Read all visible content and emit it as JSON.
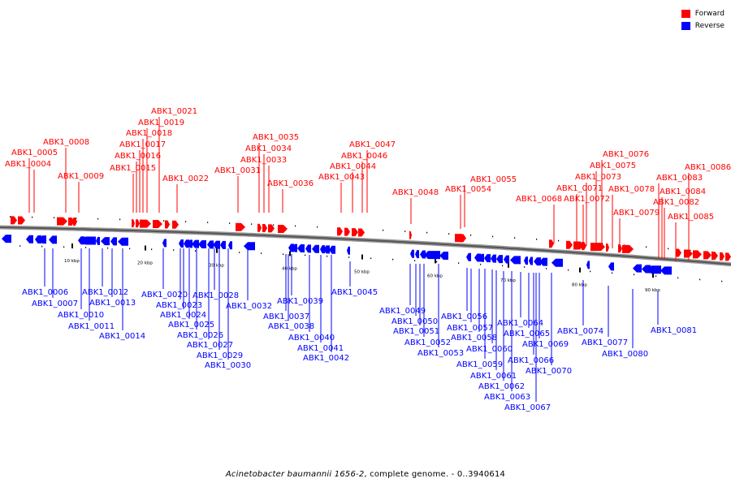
{
  "legend": {
    "forward_label": "Forward",
    "reverse_label": "Reverse",
    "forward_color": "#ff0000",
    "reverse_color": "#0000ff"
  },
  "caption": {
    "prefix": "Acinetobacter baumannii 1656-2",
    "suffix": ", complete genome. - 0..3940614"
  },
  "scale_ticks": [
    "10 kbp",
    "20 kbp",
    "30 kbp",
    "40 kbp",
    "50 kbp",
    "60 kbp",
    "70 kbp",
    "80 kbp",
    "90 kbp"
  ],
  "genes_forward": [
    "ABK1_0005",
    "ABK1_0004",
    "ABK1_0008",
    "ABK1_0009",
    "ABK1_0015",
    "ABK1_0016",
    "ABK1_0017",
    "ABK1_0018",
    "ABK1_0019",
    "ABK1_0021",
    "ABK1_0022",
    "ABK1_0031",
    "ABK1_0035",
    "ABK1_0034",
    "ABK1_0033",
    "ABK1_0036",
    "ABK1_0047",
    "ABK1_0046",
    "ABK1_0044",
    "ABK1_0043",
    "ABK1_0048",
    "ABK1_0055",
    "ABK1_0054",
    "ABK1_0068",
    "ABK1_0076",
    "ABK1_0075",
    "ABK1_0073",
    "ABK1_0071",
    "ABK1_0072",
    "ABK1_0078",
    "ABK1_0079",
    "ABK1_0083",
    "ABK1_0084",
    "ABK1_0082",
    "ABK1_0086",
    "ABK1_0085"
  ],
  "genes_reverse": [
    "ABK1_0006",
    "ABK1_0007",
    "ABK1_0010",
    "ABK1_0011",
    "ABK1_0012",
    "ABK1_0013",
    "ABK1_0014",
    "ABK1_0020",
    "ABK1_0023",
    "ABK1_0024",
    "ABK1_0025",
    "ABK1_0026",
    "ABK1_0027",
    "ABK1_0028",
    "ABK1_0029",
    "ABK1_0030",
    "ABK1_0032",
    "ABK1_0039",
    "ABK1_0037",
    "ABK1_0038",
    "ABK1_0040",
    "ABK1_0041",
    "ABK1_0042",
    "ABK1_0045",
    "ABK1_0049",
    "ABK1_0050",
    "ABK1_0051",
    "ABK1_0052",
    "ABK1_0053",
    "ABK1_0056",
    "ABK1_0057",
    "ABK1_0058",
    "ABK1_0060",
    "ABK1_0059",
    "ABK1_0061",
    "ABK1_0062",
    "ABK1_0063",
    "ABK1_0067",
    "ABK1_0064",
    "ABK1_0065",
    "ABK1_0066",
    "ABK1_0069",
    "ABK1_0070",
    "ABK1_0074",
    "ABK1_0077",
    "ABK1_0080",
    "ABK1_0081"
  ]
}
